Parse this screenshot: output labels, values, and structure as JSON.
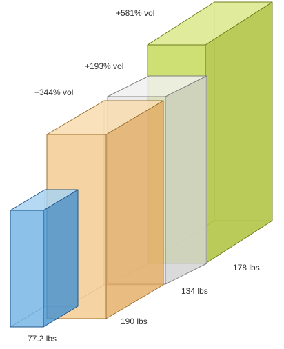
{
  "boxes": [
    {
      "id": "green",
      "volume_label": "+581% vol",
      "weight_label": "178 lbs",
      "colors": {
        "front": "#b9d139",
        "side": "#a6bd2b",
        "top": "#dbe88a",
        "edge": "#6f7d1c"
      }
    },
    {
      "id": "gray",
      "volume_label": "+193% vol",
      "weight_label": "134 lbs",
      "colors": {
        "front": "#e2e2e2",
        "side": "#cfcfcf",
        "top": "#f0f0f0",
        "edge": "#808080"
      }
    },
    {
      "id": "orange",
      "volume_label": "+344% vol",
      "weight_label": "190 lbs",
      "colors": {
        "front": "#f2c07c",
        "side": "#e3a95d",
        "top": "#f8dcb0",
        "edge": "#9c7030"
      }
    },
    {
      "id": "blue",
      "volume_label": "",
      "weight_label": "77.2 lbs",
      "colors": {
        "front": "#5ba7e0",
        "side": "#3c8fd3",
        "top": "#a8d2f1",
        "edge": "#22568a"
      }
    }
  ]
}
